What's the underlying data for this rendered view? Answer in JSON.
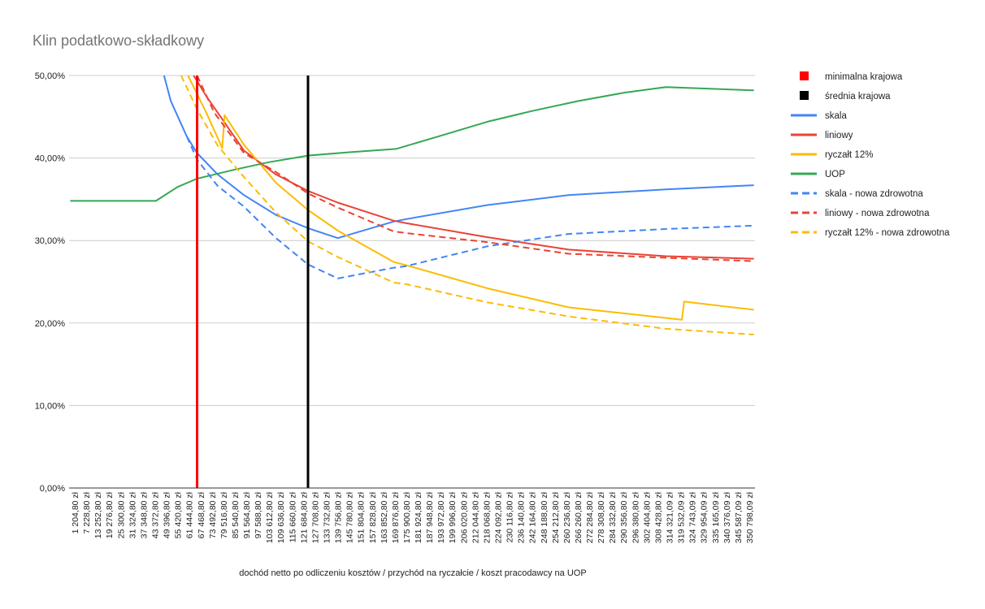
{
  "chart_data": {
    "type": "line",
    "title": "Klin podatkowo-składkowy",
    "xlabel": "dochód netto po odliczeniu kosztów / przychód na ryczałcie / koszt pracodawcy na UOP",
    "ylabel": "",
    "ylim": [
      0,
      50
    ],
    "yticks": [
      "0,00%",
      "10,00%",
      "20,00%",
      "30,00%",
      "40,00%",
      "50,00%"
    ],
    "ytick_values": [
      0,
      10,
      20,
      30,
      40,
      50
    ],
    "grid": true,
    "legend_position": "right",
    "categories": [
      "1 204,80 zł",
      "7 228,80 zł",
      "13 252,80 zł",
      "19 276,80 zł",
      "25 300,80 zł",
      "31 324,80 zł",
      "37 348,80 zł",
      "43 372,80 zł",
      "49 396,80 zł",
      "55 420,80 zł",
      "61 444,80 zł",
      "67 468,80 zł",
      "73 492,80 zł",
      "79 516,80 zł",
      "85 540,80 zł",
      "91 564,80 zł",
      "97 588,80 zł",
      "103 612,80 zł",
      "109 636,80 zł",
      "115 660,80 zł",
      "121 684,80 zł",
      "127 708,80 zł",
      "133 732,80 zł",
      "139 756,80 zł",
      "145 780,80 zł",
      "151 804,80 zł",
      "157 828,80 zł",
      "163 852,80 zł",
      "169 876,80 zł",
      "175 900,80 zł",
      "181 924,80 zł",
      "187 948,80 zł",
      "193 972,80 zł",
      "199 996,80 zł",
      "206 020,80 zł",
      "212 044,80 zł",
      "218 068,80 zł",
      "224 092,80 zł",
      "230 116,80 zł",
      "236 140,80 zł",
      "242 164,80 zł",
      "248 188,80 zł",
      "254 212,80 zł",
      "260 236,80 zł",
      "266 260,80 zł",
      "272 284,80 zł",
      "278 308,80 zł",
      "284 332,80 zł",
      "290 356,80 zł",
      "296 380,80 zł",
      "302 404,80 zł",
      "308 428,80 zł",
      "314 321,09 zł",
      "319 532,09 zł",
      "324 743,09 zł",
      "329 954,09 zł",
      "335 165,09 zł",
      "340 376,09 zł",
      "345 587,09 zł",
      "350 798,09 zł"
    ],
    "markers": [
      {
        "name": "minimalna krajowa",
        "color": "#ff0000",
        "category_position": 10.7
      },
      {
        "name": "średnia krajowa",
        "color": "#000000",
        "category_position": 20.4
      }
    ],
    "series": [
      {
        "name": "skala",
        "color": "#4285f4",
        "dashed": false,
        "points": [
          [
            7.8,
            50
          ],
          [
            8.4,
            46.9
          ],
          [
            9.8,
            42.6
          ],
          [
            10.7,
            40.6
          ],
          [
            12.5,
            38.0
          ],
          [
            14.8,
            35.5
          ],
          [
            17.6,
            33.1
          ],
          [
            20.4,
            31.5
          ],
          [
            23,
            30.3
          ],
          [
            27.9,
            32.3
          ],
          [
            29,
            32.6
          ],
          [
            36.1,
            34.3
          ],
          [
            43.2,
            35.5
          ],
          [
            51.7,
            36.2
          ],
          [
            59.4,
            36.7
          ]
        ]
      },
      {
        "name": "liniowy",
        "color": "#ea4335",
        "dashed": false,
        "points": [
          [
            10.4,
            50
          ],
          [
            11.5,
            47.5
          ],
          [
            12.8,
            44.9
          ],
          [
            14.8,
            40.9
          ],
          [
            17.6,
            38.0
          ],
          [
            20.4,
            36.0
          ],
          [
            23,
            34.6
          ],
          [
            27.9,
            32.4
          ],
          [
            29,
            32.1
          ],
          [
            36.1,
            30.4
          ],
          [
            43.2,
            28.9
          ],
          [
            51.7,
            28.1
          ],
          [
            59.4,
            27.8
          ]
        ]
      },
      {
        "name": "ryczałt 12%",
        "color": "#fbbc04",
        "dashed": false,
        "points": [
          [
            9.9,
            50
          ],
          [
            11.5,
            45.5
          ],
          [
            12.9,
            41.2
          ],
          [
            13.1,
            45.2
          ],
          [
            14.8,
            41.6
          ],
          [
            16.2,
            39.3
          ],
          [
            17.6,
            37.0
          ],
          [
            20.4,
            33.7
          ],
          [
            23,
            31.2
          ],
          [
            27.9,
            27.4
          ],
          [
            29,
            27.0
          ],
          [
            36.1,
            24.2
          ],
          [
            43.2,
            21.9
          ],
          [
            53.1,
            20.4
          ],
          [
            53.3,
            22.6
          ],
          [
            59.4,
            21.6
          ]
        ]
      },
      {
        "name": "UOP",
        "color": "#34a853",
        "dashed": false,
        "points": [
          [
            -0.4,
            34.8
          ],
          [
            7.1,
            34.8
          ],
          [
            9,
            36.5
          ],
          [
            10.7,
            37.5
          ],
          [
            14,
            38.6
          ],
          [
            17,
            39.5
          ],
          [
            20.4,
            40.3
          ],
          [
            24,
            40.7
          ],
          [
            28.1,
            41.1
          ],
          [
            32,
            42.7
          ],
          [
            36.1,
            44.4
          ],
          [
            40,
            45.7
          ],
          [
            44,
            46.9
          ],
          [
            48,
            47.9
          ],
          [
            51.7,
            48.6
          ],
          [
            59.4,
            48.2
          ]
        ]
      },
      {
        "name": "skala - nowa zdrowotna",
        "color": "#4285f4",
        "dashed": true,
        "points": [
          [
            9.8,
            42.6
          ],
          [
            10.7,
            39.8
          ],
          [
            12.5,
            36.6
          ],
          [
            14.8,
            34.1
          ],
          [
            17.6,
            30.3
          ],
          [
            20.4,
            27.1
          ],
          [
            23,
            25.4
          ],
          [
            27.9,
            26.7
          ],
          [
            29,
            26.9
          ],
          [
            36.1,
            29.3
          ],
          [
            43.2,
            30.8
          ],
          [
            51.7,
            31.4
          ],
          [
            59.4,
            31.8
          ]
        ]
      },
      {
        "name": "liniowy - nowa zdrowotna",
        "color": "#ea4335",
        "dashed": true,
        "points": [
          [
            10.7,
            50
          ],
          [
            12.2,
            45.5
          ],
          [
            14.8,
            40.6
          ],
          [
            17.6,
            38.3
          ],
          [
            20.4,
            35.7
          ],
          [
            23,
            34.0
          ],
          [
            27.9,
            31.1
          ],
          [
            29,
            30.9
          ],
          [
            36.1,
            29.8
          ],
          [
            43.2,
            28.4
          ],
          [
            51.7,
            27.9
          ],
          [
            59.4,
            27.5
          ]
        ]
      },
      {
        "name": "ryczałt 12% - nowa zdrowotna",
        "color": "#fbbc04",
        "dashed": true,
        "points": [
          [
            9.3,
            50
          ],
          [
            10.7,
            45.9
          ],
          [
            12.5,
            41.5
          ],
          [
            14.8,
            37.7
          ],
          [
            17.6,
            33.4
          ],
          [
            20.4,
            29.9
          ],
          [
            23,
            28.0
          ],
          [
            27.9,
            24.9
          ],
          [
            29,
            24.7
          ],
          [
            36.1,
            22.5
          ],
          [
            43.2,
            20.8
          ],
          [
            51.7,
            19.3
          ],
          [
            59.4,
            18.6
          ]
        ]
      }
    ]
  }
}
